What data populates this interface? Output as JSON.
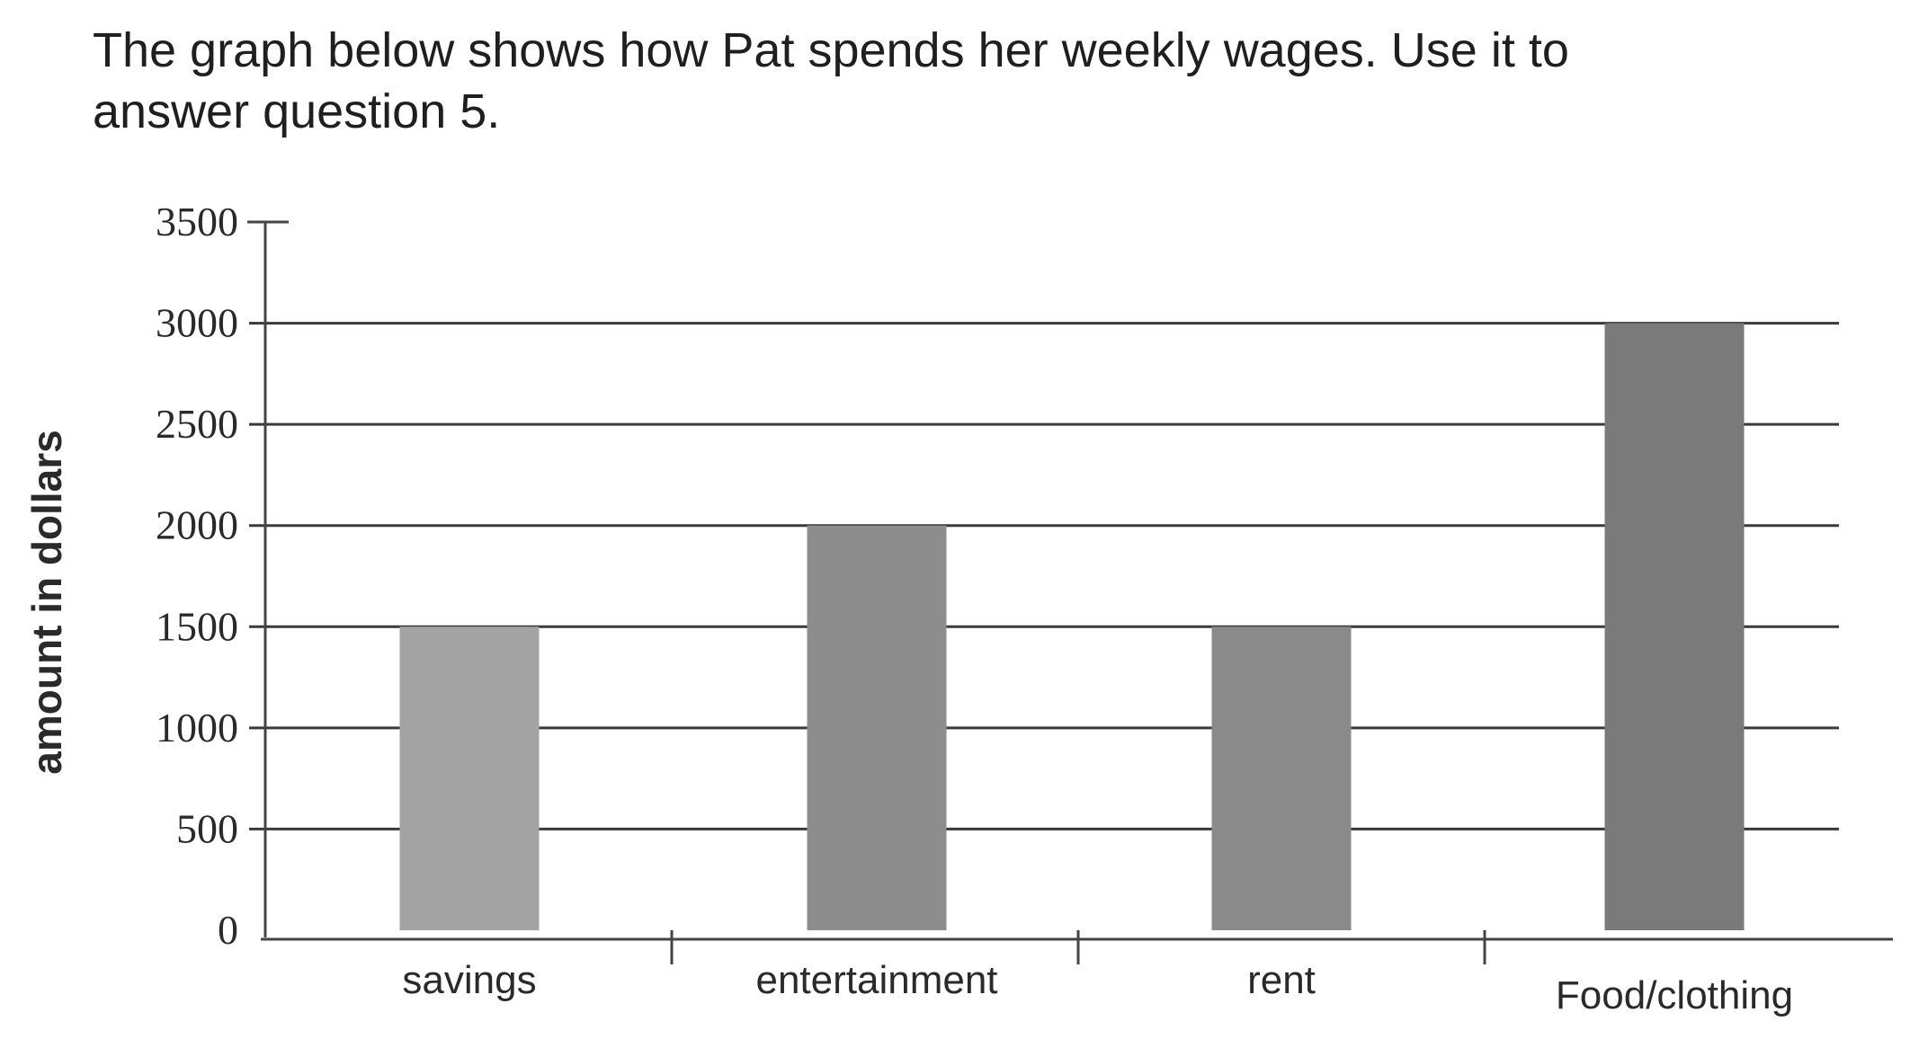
{
  "intro": {
    "line1": "The graph below shows how Pat spends her weekly wages.  Use it to",
    "line2": "answer question 5."
  },
  "chart_data": {
    "type": "bar",
    "title": "",
    "xlabel": "",
    "ylabel": "amount in dollars",
    "categories": [
      "savings",
      "entertainment",
      "rent",
      "Food/clothing"
    ],
    "values": [
      1500,
      2000,
      1500,
      3000
    ],
    "ylim": [
      0,
      3500
    ],
    "yticks": [
      0,
      500,
      1000,
      1500,
      2000,
      2500,
      3000,
      3500
    ],
    "grid": true,
    "legend": "none",
    "colors": {
      "savings": "#a3a3a3",
      "entertainment": "#8d8d8d",
      "rent": "#8a8a8a",
      "Food/clothing": "#7a7a7a",
      "gridline": "#3a3a3a",
      "axis": "#444444"
    }
  }
}
